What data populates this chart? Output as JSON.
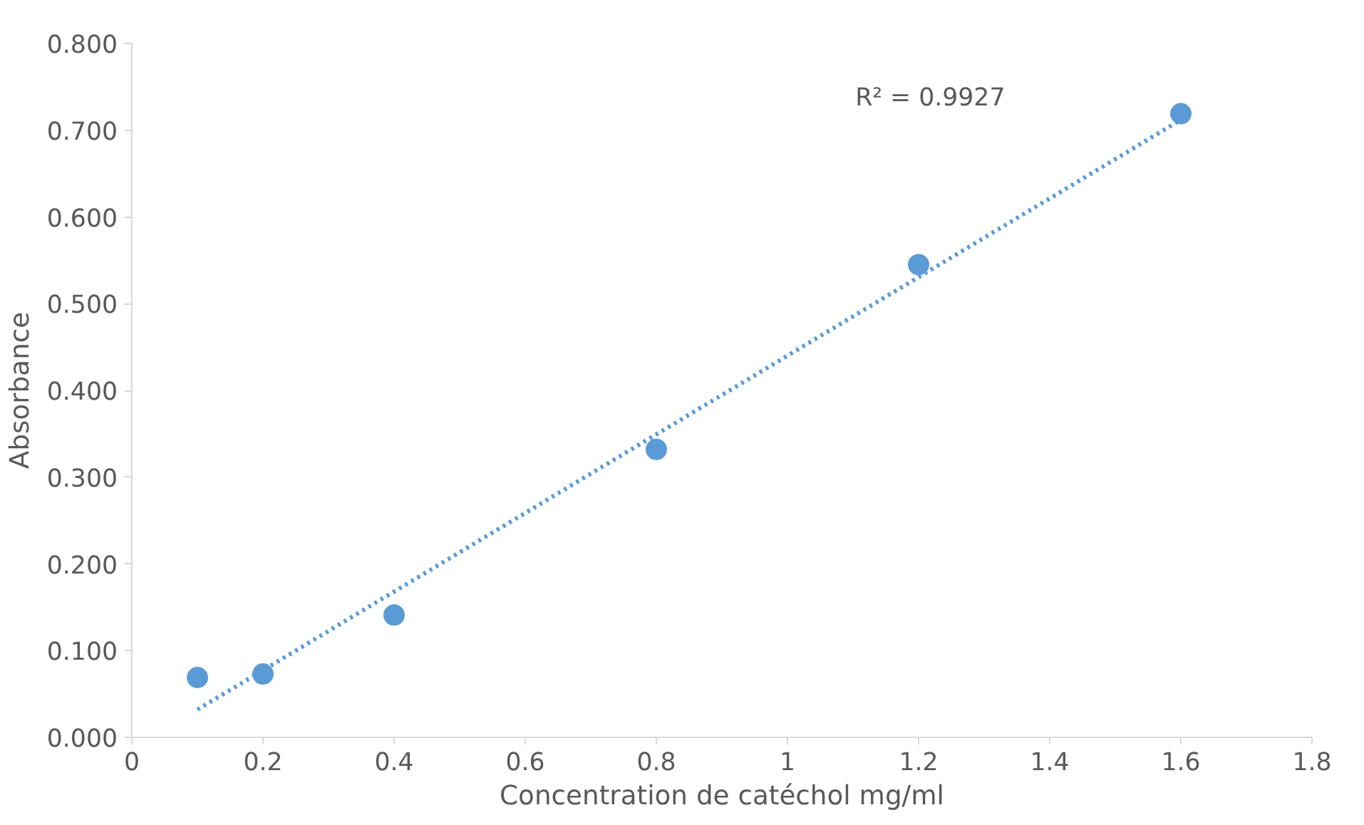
{
  "chart_data": {
    "type": "scatter",
    "xlabel": "Concentration de catéchol mg/ml",
    "ylabel": "Absorbance",
    "xlim": [
      0,
      1.8
    ],
    "ylim": [
      0,
      0.8
    ],
    "xticks": [
      0,
      0.2,
      0.4,
      0.6,
      0.8,
      1,
      1.2,
      1.4,
      1.6,
      1.8
    ],
    "yticks": [
      {
        "value": 0,
        "label": "0.000"
      },
      {
        "value": 0.1,
        "label": "0.100"
      },
      {
        "value": 0.2,
        "label": "0.200"
      },
      {
        "value": 0.3,
        "label": "0.300"
      },
      {
        "value": 0.4,
        "label": "0.400"
      },
      {
        "value": 0.5,
        "label": "0.500"
      },
      {
        "value": 0.6,
        "label": "0.600"
      },
      {
        "value": 0.7,
        "label": "0.700"
      },
      {
        "value": 0.8,
        "label": "0.800"
      }
    ],
    "grid": false,
    "series": [
      {
        "marker": "circle",
        "color": "#5b9bd5",
        "x": [
          0.1,
          0.2,
          0.4,
          0.8,
          1.2,
          1.6
        ],
        "values": [
          0.069,
          0.073,
          0.141,
          0.332,
          0.545,
          0.719
        ]
      },
      {
        "type": "line",
        "color": "#5b9bd5",
        "line_style": "dotted",
        "marker": "none",
        "x": [
          0.1,
          1.6
        ],
        "values": [
          0.032,
          0.712
        ]
      }
    ],
    "annotations": [
      "R² = 0.9927"
    ]
  }
}
